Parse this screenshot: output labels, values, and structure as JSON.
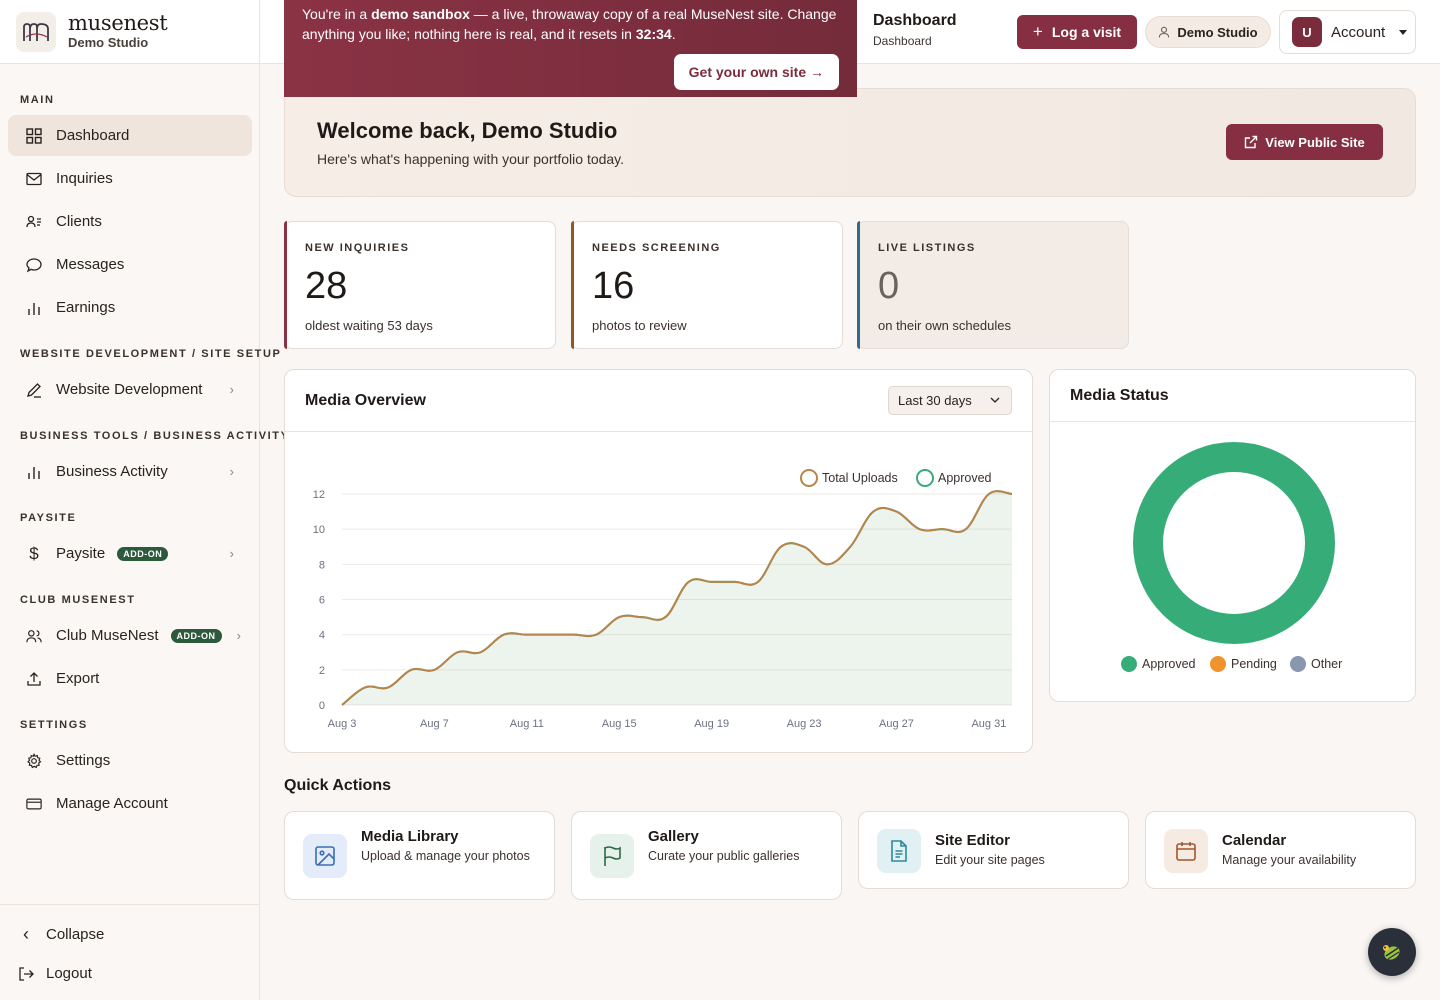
{
  "brand": {
    "name": "musenest",
    "studio": "Demo Studio"
  },
  "sidebar": {
    "sections": {
      "main": "MAIN",
      "website": "WEBSITE DEVELOPMENT / SITE SETUP",
      "business": "BUSINESS TOOLS / BUSINESS ACTIVITY",
      "paysite": "PAYSITE",
      "club": "CLUB MUSENEST",
      "settings": "SETTINGS"
    },
    "items": {
      "dashboard": "Dashboard",
      "inquiries": "Inquiries",
      "clients": "Clients",
      "messages": "Messages",
      "earnings": "Earnings",
      "website_dev": "Website Development",
      "business_activity": "Business Activity",
      "paysite": "Paysite",
      "club": "Club MuseNest",
      "export": "Export",
      "settings": "Settings",
      "manage_account": "Manage Account"
    },
    "addon_badge": "ADD-ON",
    "collapse": "Collapse",
    "logout": "Logout"
  },
  "banner": {
    "prefix": "You're in a ",
    "sandbox": "demo sandbox",
    "middle": " — a live, throwaway copy of a real MuseNest site. Change anything you like; nothing here is real, and it resets in ",
    "timer": "32:34",
    "suffix": ".",
    "cta": "Get your own site →"
  },
  "header": {
    "title": "Dashboard",
    "breadcrumb": "Dashboard",
    "log_visit": "Log a visit",
    "studio_pill": "Demo Studio",
    "avatar_letter": "U",
    "account": "Account"
  },
  "welcome": {
    "title": "Welcome back, Demo Studio",
    "subtitle": "Here's what's happening with your portfolio today.",
    "view_public": "View Public Site"
  },
  "stats": [
    {
      "label": "NEW INQUIRIES",
      "value": "28",
      "desc": "oldest waiting 53 days",
      "accent": "#8a3345"
    },
    {
      "label": "NEEDS SCREENING",
      "value": "16",
      "desc": "photos to review",
      "accent": "#8a5a2b"
    },
    {
      "label": "LIVE LISTINGS",
      "value": "0",
      "desc": "on their own schedules",
      "accent": "#2e6a8e"
    }
  ],
  "media_overview": {
    "title": "Media Overview",
    "range": "Last 30 days",
    "legend": {
      "total": "Total Uploads",
      "approved": "Approved"
    }
  },
  "media_status": {
    "title": "Media Status",
    "legend": {
      "approved": "Approved",
      "pending": "Pending",
      "other": "Other"
    }
  },
  "chart_data": [
    {
      "type": "area",
      "x": [
        "Aug 3",
        "Aug 4",
        "Aug 5",
        "Aug 6",
        "Aug 7",
        "Aug 8",
        "Aug 9",
        "Aug 10",
        "Aug 11",
        "Aug 12",
        "Aug 13",
        "Aug 14",
        "Aug 15",
        "Aug 16",
        "Aug 17",
        "Aug 18",
        "Aug 19",
        "Aug 20",
        "Aug 21",
        "Aug 22",
        "Aug 23",
        "Aug 24",
        "Aug 25",
        "Aug 26",
        "Aug 27",
        "Aug 28",
        "Aug 29",
        "Aug 30",
        "Aug 31",
        "Aug 32"
      ],
      "x_ticks": [
        "Aug 3",
        "Aug 7",
        "Aug 11",
        "Aug 15",
        "Aug 19",
        "Aug 23",
        "Aug 27",
        "Aug 31"
      ],
      "series": [
        {
          "name": "Total Uploads",
          "values": [
            0,
            1,
            1,
            2,
            2,
            3,
            3,
            4,
            4,
            4,
            4,
            4,
            5,
            5,
            5,
            7,
            7,
            7,
            7,
            9,
            9,
            8,
            9,
            11,
            11,
            10,
            10,
            10,
            12,
            12
          ]
        },
        {
          "name": "Approved",
          "values": [
            0,
            1,
            1,
            2,
            2,
            3,
            3,
            4,
            4,
            4,
            4,
            4,
            5,
            5,
            5,
            7,
            7,
            7,
            7,
            9,
            9,
            8,
            9,
            11,
            11,
            10,
            10,
            10,
            12,
            12
          ]
        }
      ],
      "y_ticks": [
        0,
        2,
        4,
        6,
        8,
        10,
        12
      ],
      "ylim": [
        0,
        12
      ],
      "colors": {
        "Total Uploads": "#b8844a",
        "Approved": "#3aaa7a"
      }
    },
    {
      "type": "pie",
      "labels": [
        "Approved",
        "Pending",
        "Other"
      ],
      "values": [
        100,
        0,
        0
      ],
      "colors": [
        "#36ad78",
        "#f0932c",
        "#8896b0"
      ]
    }
  ],
  "quick_actions": {
    "title": "Quick Actions",
    "items": [
      {
        "name": "Media Library",
        "desc": "Upload & manage your photos"
      },
      {
        "name": "Gallery",
        "desc": "Curate your public galleries"
      },
      {
        "name": "Site Editor",
        "desc": "Edit your site pages"
      },
      {
        "name": "Calendar",
        "desc": "Manage your availability"
      }
    ]
  }
}
